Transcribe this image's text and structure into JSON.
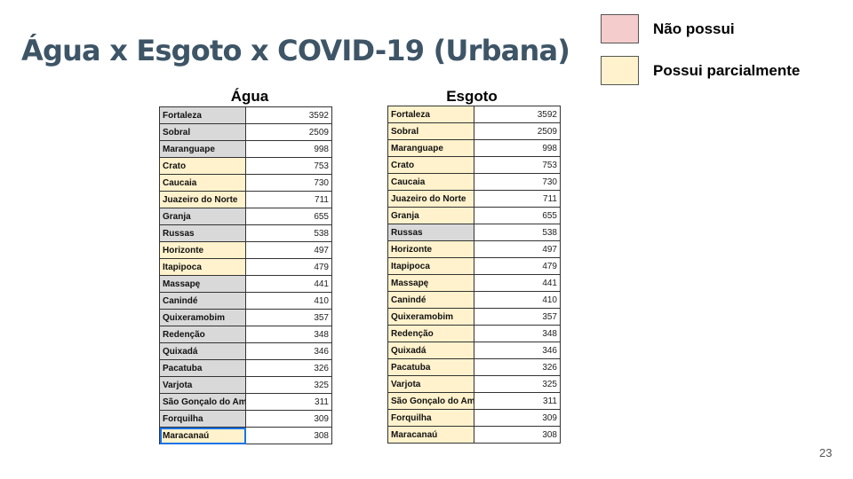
{
  "slide": {
    "title": "Água x Esgoto x COVID-19 (Urbana)",
    "page_number": "23"
  },
  "legend": [
    {
      "label": "Não possui",
      "color": "#f4cccc"
    },
    {
      "label": "Possui parcialmente",
      "color": "#fff2cc"
    }
  ],
  "colors": {
    "gray": "#d9d9d9",
    "pink": "#f4cccc",
    "yellow": "#fff2cc"
  },
  "agua": {
    "heading": "Água",
    "rows": [
      {
        "city": "Fortaleza",
        "value": "3592",
        "status": "gray"
      },
      {
        "city": "Sobral",
        "value": "2509",
        "status": "gray"
      },
      {
        "city": "Maranguape",
        "value": "998",
        "status": "gray"
      },
      {
        "city": "Crato",
        "value": "753",
        "status": "yellow"
      },
      {
        "city": "Caucaia",
        "value": "730",
        "status": "yellow"
      },
      {
        "city": "Juazeiro do Norte",
        "value": "711",
        "status": "yellow"
      },
      {
        "city": "Granja",
        "value": "655",
        "status": "gray"
      },
      {
        "city": "Russas",
        "value": "538",
        "status": "gray"
      },
      {
        "city": "Horizonte",
        "value": "497",
        "status": "yellow"
      },
      {
        "city": "Itapipoca",
        "value": "479",
        "status": "yellow"
      },
      {
        "city": "Massapę",
        "value": "441",
        "status": "gray"
      },
      {
        "city": "Canindé",
        "value": "410",
        "status": "gray"
      },
      {
        "city": "Quixeramobim",
        "value": "357",
        "status": "gray"
      },
      {
        "city": "Redenção",
        "value": "348",
        "status": "gray"
      },
      {
        "city": "Quixadá",
        "value": "346",
        "status": "gray"
      },
      {
        "city": "Pacatuba",
        "value": "326",
        "status": "gray"
      },
      {
        "city": "Varjota",
        "value": "325",
        "status": "gray"
      },
      {
        "city": "São Gonçalo do Am",
        "value": "311",
        "status": "gray"
      },
      {
        "city": "Forquilha",
        "value": "309",
        "status": "gray"
      },
      {
        "city": "Maracanaú",
        "value": "308",
        "status": "yellow",
        "selected": true
      }
    ]
  },
  "esgoto": {
    "heading": "Esgoto",
    "rows": [
      {
        "city": "Fortaleza",
        "value": "3592",
        "status": "yellow"
      },
      {
        "city": "Sobral",
        "value": "2509",
        "status": "yellow"
      },
      {
        "city": "Maranguape",
        "value": "998",
        "status": "yellow"
      },
      {
        "city": "Crato",
        "value": "753",
        "status": "yellow"
      },
      {
        "city": "Caucaia",
        "value": "730",
        "status": "yellow"
      },
      {
        "city": "Juazeiro do Norte",
        "value": "711",
        "status": "yellow"
      },
      {
        "city": "Granja",
        "value": "655",
        "status": "yellow"
      },
      {
        "city": "Russas",
        "value": "538",
        "status": "gray"
      },
      {
        "city": "Horizonte",
        "value": "497",
        "status": "yellow"
      },
      {
        "city": "Itapipoca",
        "value": "479",
        "status": "yellow"
      },
      {
        "city": "Massapę",
        "value": "441",
        "status": "yellow"
      },
      {
        "city": "Canindé",
        "value": "410",
        "status": "yellow"
      },
      {
        "city": "Quixeramobim",
        "value": "357",
        "status": "yellow"
      },
      {
        "city": "Redenção",
        "value": "348",
        "status": "yellow"
      },
      {
        "city": "Quixadá",
        "value": "346",
        "status": "yellow"
      },
      {
        "city": "Pacatuba",
        "value": "326",
        "status": "yellow"
      },
      {
        "city": "Varjota",
        "value": "325",
        "status": "yellow"
      },
      {
        "city": "São Gonçalo do Am",
        "value": "311",
        "status": "yellow"
      },
      {
        "city": "Forquilha",
        "value": "309",
        "status": "yellow"
      },
      {
        "city": "Maracanaú",
        "value": "308",
        "status": "yellow"
      }
    ]
  }
}
